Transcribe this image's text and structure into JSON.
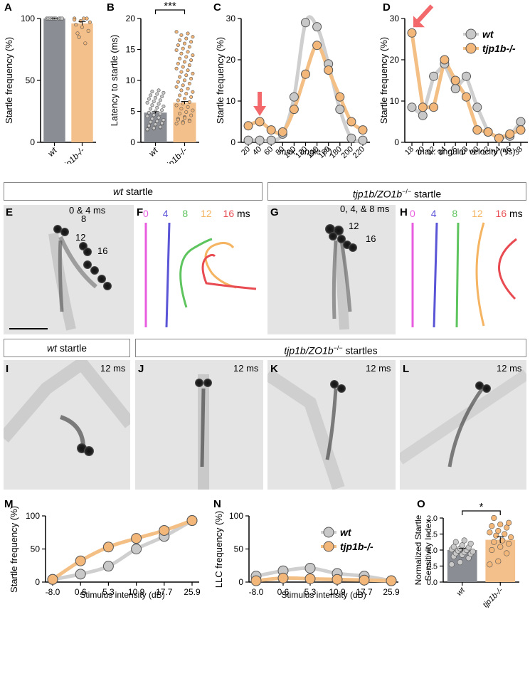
{
  "panel_labels": {
    "A": "A",
    "B": "B",
    "C": "C",
    "D": "D",
    "E": "E",
    "F": "F",
    "G": "G",
    "H": "H",
    "I": "I",
    "J": "J",
    "K": "K",
    "L": "L",
    "M": "M",
    "N": "N",
    "O": "O"
  },
  "headers": {
    "wt_startle_geno": "wt",
    "wt_startle_word": "startle",
    "mut_startle_geno": "tjp1b/ZO1b",
    "mut_sup": "−/−",
    "startles_word": "startles"
  },
  "panel_e": {
    "labels": [
      "0 & 4 ms",
      "8",
      "12",
      "16"
    ]
  },
  "panel_g": {
    "labels": [
      "0, 4, & 8 ms",
      "12",
      "16"
    ]
  },
  "time_labels": [
    "0",
    "4",
    "8",
    "12",
    "16"
  ],
  "time_unit": "ms",
  "panels_ijkl_time": "12 ms",
  "colors": {
    "wt": "#8a8d93",
    "mut": "#f3c08c",
    "wt_point": "#c8c8c8",
    "mut_point": "#f3b77a",
    "arrow": "#f2686b",
    "wt_line": "#cfcfcf",
    "mut_line": "#f3bf85"
  },
  "legend": {
    "wt": "wt",
    "mut": "tjp1b-/-"
  },
  "chart_data": [
    {
      "id": "A",
      "type": "bar",
      "categories": [
        "wt",
        "tjp1b-/-"
      ],
      "values": [
        100,
        96
      ],
      "errors": [
        0.3,
        1.5
      ],
      "ylabel": "Startle frequency (%)",
      "ylim": [
        0,
        100
      ],
      "yticks": [
        "0",
        "50",
        "100"
      ]
    },
    {
      "id": "B",
      "type": "bar",
      "categories": [
        "wt",
        "tjp1b-/-"
      ],
      "values": [
        4.8,
        6.4
      ],
      "errors": [
        0.15,
        0.2
      ],
      "ylabel": "Latency to startle (ms)",
      "ylim": [
        0,
        20
      ],
      "yticks": [
        "0",
        "5",
        "10",
        "15",
        "20"
      ],
      "significance": "***"
    },
    {
      "id": "C",
      "type": "line",
      "x": [
        20,
        40,
        60,
        80,
        100,
        120,
        140,
        160,
        180,
        200,
        220
      ],
      "xticks": [
        "20",
        "40",
        "60",
        "80",
        "100",
        "120",
        "140",
        "160",
        "180",
        "200",
        "220"
      ],
      "series": [
        {
          "name": "wt",
          "values": [
            0.5,
            0.5,
            0.5,
            2,
            11,
            29,
            28,
            19,
            8,
            1,
            0.5
          ]
        },
        {
          "name": "tjp1b-/-",
          "values": [
            4,
            5,
            3,
            2.5,
            8,
            16.5,
            23.5,
            17.5,
            11,
            5,
            3
          ]
        }
      ],
      "xlabel": "max. angle (º)",
      "ylabel": "Startle frequency (%)",
      "ylim": [
        0,
        30
      ],
      "yticks": [
        "0",
        "10",
        "20",
        "30"
      ],
      "arrow_at_x": 40
    },
    {
      "id": "D",
      "type": "line",
      "x": [
        18,
        20,
        22,
        24,
        26,
        28,
        30,
        32,
        34,
        36,
        38
      ],
      "xticks": [
        "18",
        "20",
        "22",
        "24",
        "26",
        "28",
        "30",
        "32",
        "34",
        "36",
        "38"
      ],
      "series": [
        {
          "name": "wt",
          "values": [
            8.5,
            6.5,
            16,
            19,
            13,
            16,
            8.5,
            2.5,
            1,
            1.5,
            5
          ]
        },
        {
          "name": "tjp1b-/-",
          "values": [
            26.5,
            8.5,
            8.5,
            20,
            15,
            11,
            3,
            2.5,
            1,
            2,
            3
          ]
        }
      ],
      "xlabel": "max. angular velocity (º/s)",
      "ylabel": "Startle frequency (%)",
      "ylim": [
        0,
        30
      ],
      "yticks": [
        "0",
        "10",
        "20",
        "30"
      ],
      "arrow_at_x": 18,
      "legend_position": "top-right"
    },
    {
      "id": "M",
      "type": "line",
      "x": [
        -8.0,
        0.6,
        5.3,
        10.9,
        17.7,
        25.9
      ],
      "xticks": [
        "-8.0",
        "0.6",
        "5.3",
        "10.9",
        "17.7",
        "25.9"
      ],
      "series": [
        {
          "name": "wt",
          "values": [
            4,
            12,
            24,
            50,
            69,
            93
          ],
          "errors": [
            1,
            4,
            6,
            7,
            6,
            5
          ]
        },
        {
          "name": "tjp1b-/-",
          "values": [
            4,
            32,
            53,
            66,
            78,
            93
          ],
          "errors": [
            1,
            5,
            6,
            6,
            5,
            5
          ]
        }
      ],
      "xlabel": "Stimulus intensity (dB)",
      "ylabel": "Startle frequency (%)",
      "ylim": [
        0,
        100
      ],
      "yticks": [
        "0",
        "50",
        "100"
      ]
    },
    {
      "id": "N",
      "type": "line",
      "x": [
        -8.0,
        0.6,
        5.3,
        10.9,
        17.7,
        25.9
      ],
      "xticks": [
        "-8.0",
        "0.6",
        "5.3",
        "10.9",
        "17.7",
        "25.9"
      ],
      "series": [
        {
          "name": "wt",
          "values": [
            9,
            17,
            21,
            13,
            9,
            2
          ],
          "errors": [
            1,
            4,
            4,
            2,
            1,
            1
          ]
        },
        {
          "name": "tjp1b-/-",
          "values": [
            2,
            6,
            5,
            4,
            3,
            2
          ],
          "errors": [
            0.5,
            1,
            1,
            1,
            1,
            0.5
          ]
        }
      ],
      "xlabel": "Stimulus intensity (dB)",
      "ylabel": "LLC frequency (%)",
      "ylim": [
        0,
        100
      ],
      "yticks": [
        "0",
        "50",
        "100"
      ],
      "legend_position": "top-right"
    },
    {
      "id": "O",
      "type": "bar",
      "categories": [
        "wt",
        "tjp1b-/-"
      ],
      "values": [
        1.0,
        1.32
      ],
      "errors": [
        0.05,
        0.1
      ],
      "points": [
        [
          0.55,
          0.62,
          0.75,
          0.8,
          0.85,
          0.88,
          0.9,
          0.93,
          0.95,
          0.98,
          1.0,
          1.02,
          1.05,
          1.08,
          1.1,
          1.15,
          1.2,
          1.25,
          1.3
        ],
        [
          0.55,
          0.65,
          0.9,
          1.0,
          1.1,
          1.2,
          1.25,
          1.3,
          1.4,
          1.45,
          1.5,
          1.55,
          1.6,
          1.7,
          1.75,
          1.8,
          1.85,
          2.0
        ]
      ],
      "ylabel": "Normalized Startle Sensitivity Index",
      "ylim": [
        0,
        2.0
      ],
      "yticks": [
        "0.0",
        "0.5",
        "1.0",
        "1.5",
        "2.0"
      ],
      "significance": "*"
    }
  ]
}
